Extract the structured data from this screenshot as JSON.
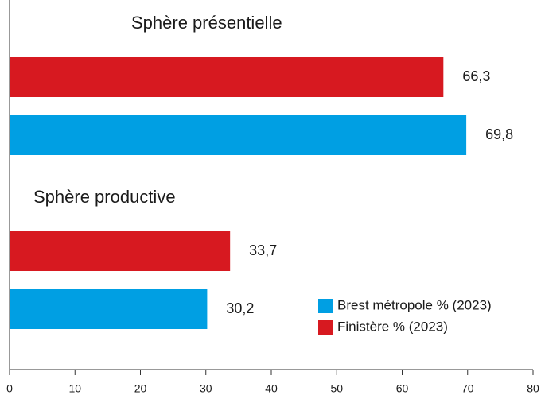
{
  "chart_data": {
    "type": "bar",
    "orientation": "horizontal",
    "categories": [
      "Sphère présentielle",
      "Sphère productive"
    ],
    "series": [
      {
        "name": "Brest métropole % (2023)",
        "color": "#009fe3",
        "values": [
          69.8,
          30.2
        ],
        "value_labels": [
          "69,8",
          "30,2"
        ]
      },
      {
        "name": "Finistère % (2023)",
        "color": "#d71920",
        "values": [
          66.3,
          33.7
        ],
        "value_labels": [
          "66,3",
          "33,7"
        ]
      }
    ],
    "xlim": [
      0,
      80
    ],
    "xticks": [
      0,
      10,
      20,
      30,
      40,
      50,
      60,
      70,
      80
    ],
    "legend": "lower right"
  }
}
